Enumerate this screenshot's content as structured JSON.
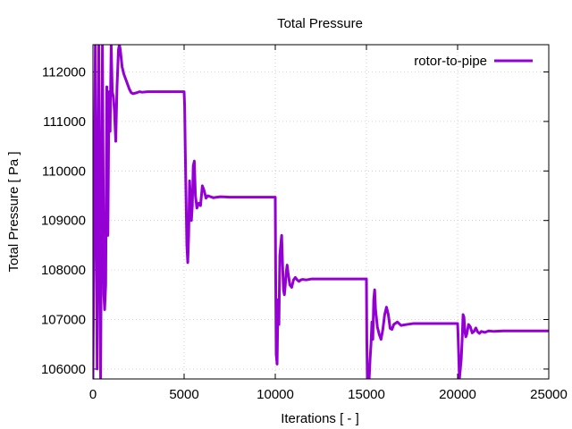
{
  "chart_data": {
    "type": "line",
    "title": "Total Pressure",
    "xlabel": "Iterations [ - ]",
    "ylabel": "Total Pressure [ Pa ]",
    "xlim": [
      0,
      25000
    ],
    "ylim": [
      105800,
      112550
    ],
    "xticks": [
      0,
      5000,
      10000,
      15000,
      20000,
      25000
    ],
    "xtick_labels": [
      "0",
      "5000",
      "10000",
      "15000",
      "20000",
      "25000"
    ],
    "yticks": [
      106000,
      107000,
      108000,
      109000,
      110000,
      111000,
      112000
    ],
    "ytick_labels": [
      "106000",
      "107000",
      "108000",
      "109000",
      "110000",
      "111000",
      "112000"
    ],
    "grid": true,
    "legend_position": "top-right",
    "series": [
      {
        "name": "rotor-to-pipe",
        "color": "#9400d3",
        "x": [
          0,
          130,
          230,
          320,
          420,
          520,
          600,
          640,
          700,
          760,
          820,
          880,
          940,
          1000,
          1060,
          1120,
          1180,
          1250,
          1320,
          1400,
          1450,
          1500,
          1600,
          1700,
          1800,
          1900,
          2000,
          2100,
          2200,
          2300,
          2400,
          2550,
          2700,
          3000,
          3500,
          4000,
          4500,
          5000,
          5030,
          5060,
          5100,
          5150,
          5200,
          5250,
          5300,
          5350,
          5400,
          5450,
          5500,
          5560,
          5620,
          5700,
          5800,
          5900,
          6000,
          6100,
          6200,
          6300,
          6450,
          6600,
          6800,
          7000,
          7500,
          8000,
          9000,
          10000,
          10020,
          10050,
          10100,
          10150,
          10200,
          10250,
          10300,
          10350,
          10400,
          10450,
          10500,
          10550,
          10600,
          10650,
          10700,
          10800,
          10900,
          11000,
          11100,
          11200,
          11300,
          11400,
          11500,
          11700,
          12000,
          13000,
          14000,
          15000,
          15020,
          15050,
          15100,
          15150,
          15200,
          15250,
          15300,
          15350,
          15400,
          15450,
          15500,
          15600,
          15700,
          15800,
          15900,
          16000,
          16100,
          16200,
          16300,
          16400,
          16500,
          16700,
          16900,
          17200,
          17600,
          18000,
          19000,
          20000,
          20020,
          20050,
          20100,
          20150,
          20200,
          20250,
          20300,
          20350,
          20400,
          20450,
          20500,
          20550,
          20600,
          20700,
          20800,
          20900,
          21000,
          21100,
          21200,
          21300,
          21500,
          21700,
          22000,
          22500,
          23000,
          24000,
          25000
        ],
        "y": [
          105800,
          112550,
          106000,
          112550,
          105800,
          112550,
          107500,
          107200,
          107700,
          111700,
          108700,
          111600,
          110800,
          112550,
          111600,
          111500,
          111200,
          110600,
          111700,
          112450,
          112550,
          112450,
          112100,
          111950,
          111850,
          111750,
          111650,
          111580,
          111560,
          111570,
          111580,
          111600,
          111590,
          111600,
          111600,
          111600,
          111600,
          111600,
          111300,
          110500,
          109600,
          108500,
          108150,
          108700,
          109800,
          109400,
          109000,
          109300,
          110100,
          110200,
          109500,
          109250,
          109350,
          109300,
          109700,
          109600,
          109450,
          109500,
          109480,
          109460,
          109470,
          109480,
          109470,
          109470,
          109470,
          109470,
          108000,
          106300,
          106100,
          107400,
          106900,
          108300,
          108500,
          108700,
          108100,
          107600,
          107500,
          107700,
          107950,
          108100,
          107950,
          107700,
          107650,
          107800,
          107850,
          107800,
          107770,
          107800,
          107810,
          107800,
          107820,
          107820,
          107820,
          107820,
          106600,
          105800,
          106000,
          105800,
          106200,
          106500,
          106950,
          106600,
          107400,
          107600,
          107200,
          106850,
          106700,
          106600,
          106800,
          107100,
          107250,
          107100,
          106820,
          106800,
          106900,
          106950,
          106880,
          106900,
          106920,
          106920,
          106920,
          106920,
          106750,
          106400,
          105800,
          106000,
          106200,
          106600,
          107100,
          107050,
          106750,
          106650,
          106700,
          106800,
          106900,
          106850,
          106730,
          106760,
          106830,
          106750,
          106720,
          106760,
          106740,
          106770,
          106760,
          106770,
          106770,
          106770,
          106770
        ]
      }
    ]
  }
}
